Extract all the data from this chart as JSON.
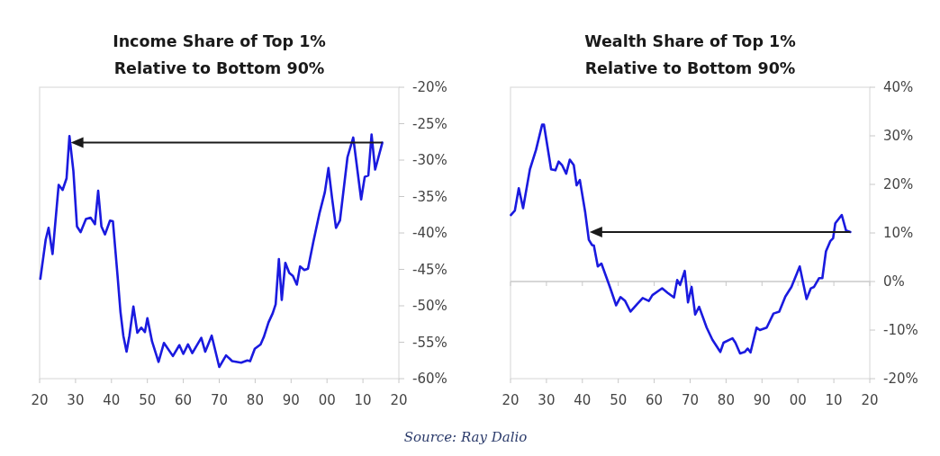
{
  "chart_data": [
    {
      "type": "line",
      "title": "Income Share of Top 1%\nRelative to Bottom 90%",
      "xlim": [
        1920,
        2020
      ],
      "ylim": [
        -60,
        -20
      ],
      "xticks": [
        {
          "value": 1920,
          "label": "20"
        },
        {
          "value": 1930,
          "label": "30"
        },
        {
          "value": 1940,
          "label": "40"
        },
        {
          "value": 1950,
          "label": "50"
        },
        {
          "value": 1960,
          "label": "60"
        },
        {
          "value": 1970,
          "label": "70"
        },
        {
          "value": 1980,
          "label": "80"
        },
        {
          "value": 1990,
          "label": "90"
        },
        {
          "value": 2000,
          "label": "00"
        },
        {
          "value": 2010,
          "label": "10"
        },
        {
          "value": 2020,
          "label": "20"
        }
      ],
      "yticks": [
        {
          "value": -20,
          "label": "-20%"
        },
        {
          "value": -25,
          "label": "-25%"
        },
        {
          "value": -30,
          "label": "-30%"
        },
        {
          "value": -35,
          "label": "-35%"
        },
        {
          "value": -40,
          "label": "-40%"
        },
        {
          "value": -45,
          "label": "-45%"
        },
        {
          "value": -50,
          "label": "-50%"
        },
        {
          "value": -55,
          "label": "-55%"
        },
        {
          "value": -60,
          "label": "-60%"
        }
      ],
      "grid": false,
      "marker": "none",
      "series": [
        {
          "color": "#1a1adf",
          "x": [
            1920.2,
            1921.7,
            1922.5,
            1923.6,
            1925.3,
            1926.4,
            1927.5,
            1928.3,
            1929.4,
            1930.4,
            1931.4,
            1932.9,
            1934.2,
            1935.4,
            1936.3,
            1937.2,
            1938.2,
            1939.6,
            1940.4,
            1941.7,
            1942.5,
            1943.3,
            1944.2,
            1945,
            1946.1,
            1947.2,
            1948.3,
            1949.3,
            1950,
            1951.3,
            1953.1,
            1954.6,
            1957.1,
            1958.9,
            1960,
            1961.3,
            1962.5,
            1965,
            1966.1,
            1967.9,
            1970,
            1971.9,
            1973.6,
            1976.1,
            1977.8,
            1978.6,
            1979.9,
            1981.5,
            1982.4,
            1983.7,
            1984.9,
            1985.7,
            1986.6,
            1987.4,
            1988.4,
            1989.5,
            1990.5,
            1991.6,
            1992.5,
            1993.7,
            1994.7,
            1996.2,
            1997.9,
            1999.4,
            2000.4,
            2001.4,
            2002.5,
            2003.6,
            2005.7,
            2007.3,
            2009.5,
            2010.5,
            2011.5,
            2012.4,
            2013.4,
            2015.4
          ],
          "values": [
            -46.3,
            -40.9,
            -39.3,
            -42.9,
            -33.4,
            -34.1,
            -32.5,
            -26.7,
            -31.5,
            -39.1,
            -39.9,
            -38.1,
            -37.9,
            -38.8,
            -34.2,
            -39.1,
            -40.2,
            -38.3,
            -38.4,
            -45.9,
            -50.8,
            -54.1,
            -56.3,
            -54.1,
            -50.1,
            -53.7,
            -53.0,
            -53.6,
            -51.7,
            -54.9,
            -57.7,
            -55.1,
            -56.9,
            -55.4,
            -56.6,
            -55.3,
            -56.5,
            -54.4,
            -56.3,
            -54.1,
            -58.4,
            -56.8,
            -57.6,
            -57.8,
            -57.5,
            -57.6,
            -55.9,
            -55.3,
            -54.3,
            -52.3,
            -51.0,
            -49.8,
            -43.6,
            -49.2,
            -44.1,
            -45.5,
            -45.9,
            -47.1,
            -44.6,
            -45.1,
            -44.9,
            -41.2,
            -37.3,
            -34.4,
            -31.1,
            -35.2,
            -39.3,
            -38.3,
            -29.6,
            -26.9,
            -35.4,
            -32.3,
            -32.1,
            -26.5,
            -31.3,
            -27.6
          ]
        }
      ]
    },
    {
      "type": "line",
      "title": "Wealth Share of Top 1%\nRelative to Bottom 90%",
      "xlim": [
        1920,
        2020
      ],
      "ylim": [
        -20,
        40
      ],
      "xticks": [
        {
          "value": 1920,
          "label": "20"
        },
        {
          "value": 1930,
          "label": "30"
        },
        {
          "value": 1940,
          "label": "40"
        },
        {
          "value": 1950,
          "label": "50"
        },
        {
          "value": 1960,
          "label": "60"
        },
        {
          "value": 1970,
          "label": "70"
        },
        {
          "value": 1980,
          "label": "80"
        },
        {
          "value": 1990,
          "label": "90"
        },
        {
          "value": 2000,
          "label": "00"
        },
        {
          "value": 2010,
          "label": "10"
        },
        {
          "value": 2020,
          "label": "20"
        }
      ],
      "yticks": [
        {
          "value": -20,
          "label": "-20%"
        },
        {
          "value": -10,
          "label": "-10%"
        },
        {
          "value": 0,
          "label": "0%"
        },
        {
          "value": 10,
          "label": "10%"
        },
        {
          "value": 20,
          "label": "20%"
        },
        {
          "value": 30,
          "label": "30%"
        },
        {
          "value": 40,
          "label": "40%"
        }
      ],
      "grid": false,
      "marker": "none",
      "ref_lines": [
        {
          "axis": "y",
          "value": 0,
          "color": "#c8c8c8"
        }
      ],
      "annotations": [
        "Source: Ray Dalio"
      ],
      "series": [
        {
          "color": "#1a1adf",
          "x": [
            1920.1,
            1921.2,
            1922.3,
            1923.5,
            1925.4,
            1927.1,
            1928.8,
            1929.3,
            1931.3,
            1932.5,
            1933.4,
            1934.4,
            1935.5,
            1936.5,
            1937.6,
            1938.4,
            1939.3,
            1940.8,
            1941.8,
            1942.7,
            1943.2,
            1944.3,
            1945.3,
            1947.7,
            1949.4,
            1950.6,
            1951.9,
            1953.4,
            1955.3,
            1956.8,
            1958.5,
            1959.5,
            1962.2,
            1963.7,
            1965.5,
            1966.4,
            1967.2,
            1968.5,
            1969.4,
            1970.4,
            1971.4,
            1972.5,
            1974.6,
            1976.2,
            1978.4,
            1979.3,
            1981.8,
            1982.6,
            1983.9,
            1985.2,
            1986,
            1986.8,
            1988.5,
            1989.4,
            1991.3,
            1993.2,
            1994.8,
            1996.5,
            1998.2,
            2000.5,
            2002.4,
            2003.6,
            2004.5,
            2005.9,
            2006.8,
            2007.8,
            2009,
            2009.8,
            2010.4,
            2012.2,
            2013.4,
            2014.6
          ],
          "values": [
            13.7,
            14.6,
            19.2,
            15.1,
            23.1,
            27.1,
            32.3,
            32.3,
            23.1,
            22.9,
            24.7,
            23.9,
            22.2,
            25.1,
            24.0,
            19.8,
            20.9,
            14.2,
            8.6,
            7.5,
            7.4,
            3.1,
            3.7,
            -1.2,
            -4.9,
            -3.2,
            -4.0,
            -6.2,
            -4.6,
            -3.4,
            -4.0,
            -2.8,
            -1.4,
            -2.3,
            -3.3,
            0.3,
            -0.7,
            2.2,
            -4.3,
            -1.1,
            -6.8,
            -5.2,
            -9.5,
            -12.0,
            -14.5,
            -12.6,
            -11.7,
            -12.6,
            -14.8,
            -14.5,
            -13.8,
            -14.6,
            -9.5,
            -10.0,
            -9.5,
            -6.6,
            -6.2,
            -3.1,
            -1.1,
            3.1,
            -3.6,
            -1.4,
            -1.1,
            0.7,
            0.7,
            6.2,
            8.3,
            8.9,
            12.0,
            13.7,
            10.5,
            10.2
          ]
        }
      ]
    }
  ]
}
